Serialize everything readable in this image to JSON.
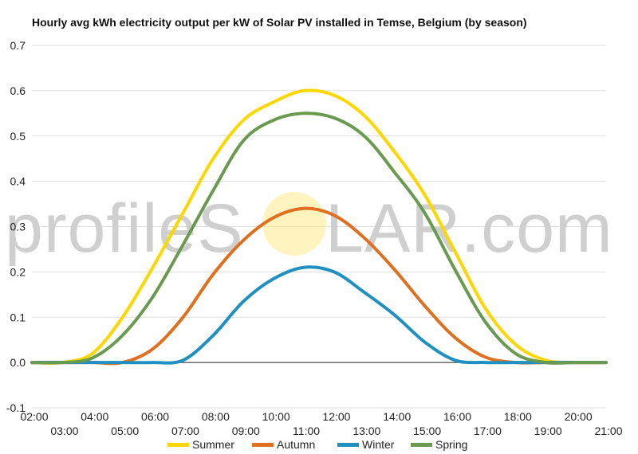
{
  "watermark": {
    "text_before": "profileS",
    "text_after": "LAR.com"
  },
  "chart_data": {
    "type": "line",
    "title": "Hourly avg kWh electricity output per kW of Solar PV installed in Temse, Belgium (by season)",
    "xlabel": "",
    "ylabel": "",
    "xlim": [
      2,
      21
    ],
    "ylim": [
      -0.1,
      0.7
    ],
    "x_ticks_top": [
      "02:00",
      "04:00",
      "06:00",
      "08:00",
      "10:00",
      "12:00",
      "14:00",
      "16:00",
      "18:00",
      "20:00"
    ],
    "x_ticks_bottom": [
      "03:00",
      "05:00",
      "07:00",
      "09:00",
      "11:00",
      "13:00",
      "15:00",
      "17:00",
      "19:00",
      "21:00"
    ],
    "y_ticks": [
      "-0.1",
      "0.0",
      "0.1",
      "0.2",
      "0.3",
      "0.4",
      "0.5",
      "0.6",
      "0.7"
    ],
    "grid": true,
    "legend_position": "bottom",
    "x": [
      2,
      3,
      4,
      5,
      6,
      7,
      8,
      9,
      10,
      11,
      12,
      13,
      14,
      15,
      16,
      17,
      18,
      19,
      20,
      21
    ],
    "series": [
      {
        "name": "Summer",
        "color": "#FFD700",
        "values": [
          0.0,
          0.0,
          0.02,
          0.1,
          0.21,
          0.33,
          0.45,
          0.535,
          0.575,
          0.6,
          0.59,
          0.545,
          0.465,
          0.37,
          0.245,
          0.12,
          0.04,
          0.005,
          0.0,
          0.0
        ]
      },
      {
        "name": "Autumn",
        "color": "#E07020",
        "values": [
          0.0,
          0.0,
          0.0,
          0.0,
          0.03,
          0.1,
          0.195,
          0.27,
          0.32,
          0.34,
          0.325,
          0.275,
          0.205,
          0.125,
          0.055,
          0.012,
          0.0,
          0.0,
          0.0,
          0.0
        ]
      },
      {
        "name": "Winter",
        "color": "#2090C0",
        "values": [
          0.0,
          0.0,
          0.0,
          0.0,
          0.0,
          0.005,
          0.06,
          0.135,
          0.185,
          0.21,
          0.2,
          0.155,
          0.105,
          0.045,
          0.005,
          0.0,
          0.0,
          0.0,
          0.0,
          0.0
        ]
      },
      {
        "name": "Spring",
        "color": "#6A9A50",
        "values": [
          0.0,
          0.0,
          0.01,
          0.06,
          0.145,
          0.26,
          0.38,
          0.49,
          0.535,
          0.55,
          0.54,
          0.5,
          0.42,
          0.33,
          0.205,
          0.09,
          0.02,
          0.0,
          0.0,
          0.0
        ]
      }
    ]
  }
}
